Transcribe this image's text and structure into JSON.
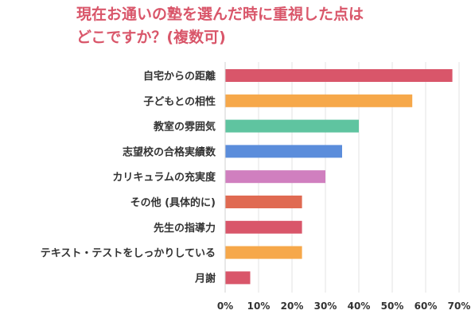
{
  "title": {
    "line1": "現在お通いの塾を選んだ時に重視した点は",
    "line2": "どこですか？(複数可)"
  },
  "chart_data": {
    "type": "bar",
    "orientation": "horizontal",
    "title": "現在お通いの塾を選んだ時に重視した点は どこですか？(複数可)",
    "categories": [
      "自宅からの距離",
      "子どもとの相性",
      "教室の雰囲気",
      "志望校の合格実績数",
      "カリキュラムの充実度",
      "その他 (具体的に)",
      "先生の指導力",
      "テキスト・テストをしっかりしている",
      "月謝"
    ],
    "values": [
      68,
      56,
      40,
      35,
      30,
      23,
      23,
      23,
      7.5
    ],
    "colors": [
      "#d9566a",
      "#f6a84a",
      "#5fc4a0",
      "#5b8ddb",
      "#d07fbf",
      "#e06a52",
      "#d9566a",
      "#f6a84a",
      "#d9566a"
    ],
    "xlim": [
      0,
      70
    ],
    "xticks": [
      "0%",
      "10%",
      "20%",
      "30%",
      "40%",
      "50%",
      "60%",
      "70%"
    ],
    "grid": true,
    "legend": "none"
  }
}
